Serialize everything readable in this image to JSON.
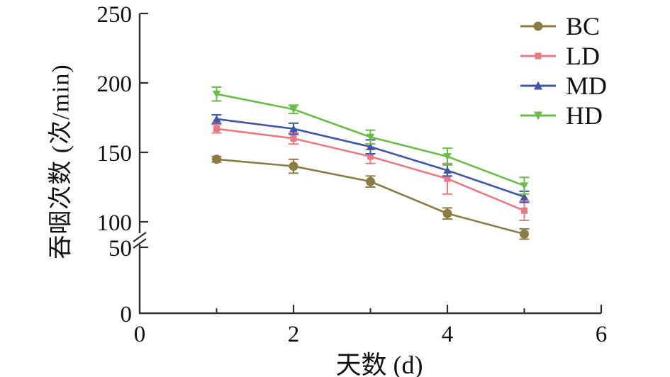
{
  "figure": {
    "background": "#ffffff",
    "axis_color": "#2e2e2e",
    "text_color": "#111111"
  },
  "chart_data": {
    "type": "line",
    "title": "",
    "xlabel": "天数 (d)",
    "ylabel": "吞咽次数 (次/min)",
    "x": [
      1,
      2,
      3,
      4,
      5
    ],
    "xlim": [
      0,
      6
    ],
    "ylim": [
      0,
      250
    ],
    "x_major_ticks": [
      0,
      2,
      4,
      6
    ],
    "x_minor_ticks": [
      1,
      3,
      5
    ],
    "y_ticks": [
      0,
      50,
      100,
      150,
      200,
      250
    ],
    "y_axis_break": {
      "between": [
        50,
        100
      ]
    },
    "grid": false,
    "error_bars": true,
    "legend_position": "top-right",
    "series": [
      {
        "name": "BC",
        "color": "#8b7c45",
        "marker": "circle",
        "values": [
          145,
          140,
          129,
          106,
          76
        ],
        "errors": [
          2,
          5,
          4,
          4,
          10
        ]
      },
      {
        "name": "LD",
        "color": "#ec7880",
        "marker": "square",
        "values": [
          167,
          160,
          147,
          131,
          108
        ],
        "errors": [
          3,
          4,
          5,
          11,
          7
        ]
      },
      {
        "name": "MD",
        "color": "#3f57a6",
        "marker": "triangle-up",
        "values": [
          174,
          167,
          154,
          137,
          118
        ],
        "errors": [
          3,
          4,
          5,
          4,
          4
        ]
      },
      {
        "name": "HD",
        "color": "#69bc45",
        "marker": "triangle-down",
        "values": [
          192,
          181,
          161,
          147,
          126
        ],
        "errors": [
          5,
          3,
          5,
          6,
          6
        ]
      }
    ]
  }
}
